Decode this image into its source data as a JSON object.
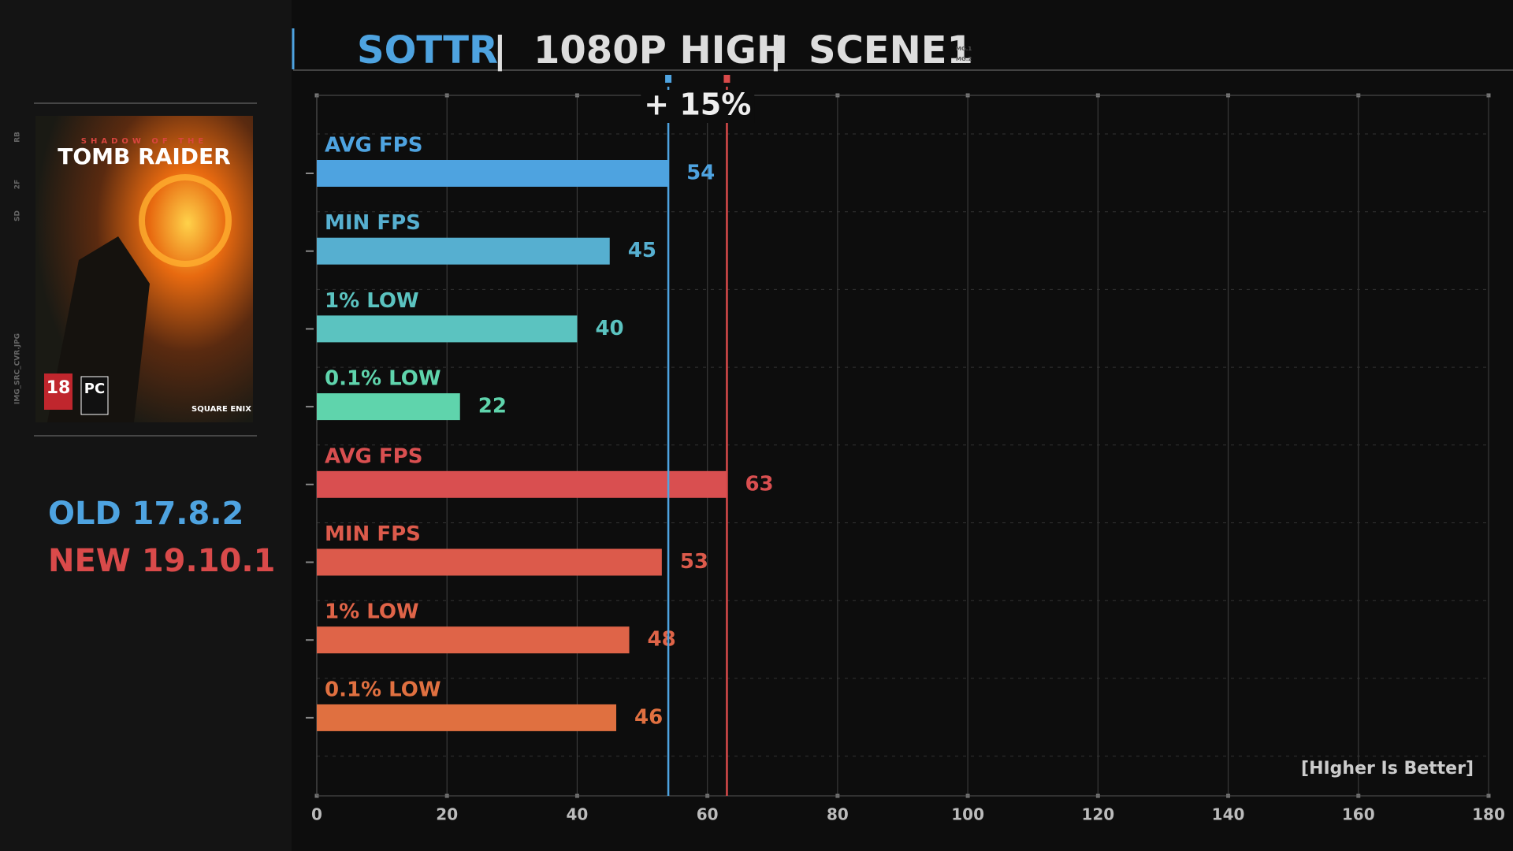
{
  "title_parts": [
    "SOTTR",
    "|",
    "1080P HIGH",
    "|",
    "SCENE1"
  ],
  "title_tags": [
    "MG.1",
    "MG.2"
  ],
  "side_labels": [
    "RB",
    "2F",
    "SD",
    "IMG_SRC_CVR.JPG"
  ],
  "cover": {
    "line1": "SHADOW OF THE",
    "line2": "TOMB RAIDER",
    "rating": "18",
    "platform": "PC",
    "publisher": "SQUARE ENIX"
  },
  "chart_data": {
    "type": "bar",
    "orientation": "horizontal",
    "categories": [
      "AVG FPS",
      "MIN FPS",
      "1% LOW",
      "0.1% LOW"
    ],
    "series": [
      {
        "name": "OLD 17.8.2",
        "color": "#4ea3e0",
        "colors": [
          "#4ea3e0",
          "#56afd0",
          "#5bc3c0",
          "#5fd4ac"
        ],
        "values": [
          54,
          45,
          40,
          22
        ]
      },
      {
        "name": "NEW 19.10.1",
        "color": "#d94a4a",
        "colors": [
          "#d94f50",
          "#dc5a4b",
          "#df6448",
          "#e07040"
        ],
        "values": [
          63,
          53,
          48,
          46
        ]
      }
    ],
    "annotation": "+ 15%",
    "note": "[HIgher Is Better]",
    "xlim": [
      0,
      180
    ],
    "xticks": [
      0,
      20,
      40,
      60,
      80,
      100,
      120,
      140,
      160,
      180
    ],
    "grid": true
  }
}
